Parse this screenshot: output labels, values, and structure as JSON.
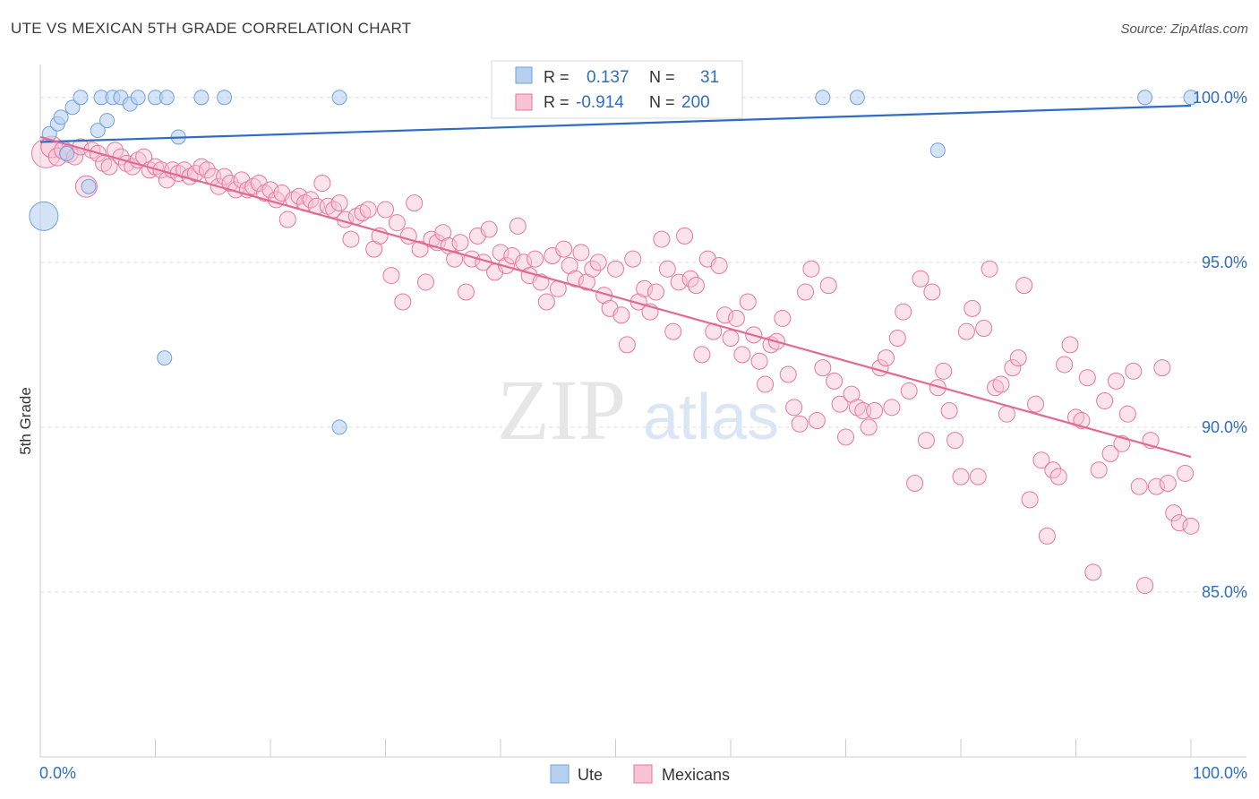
{
  "title": "UTE VS MEXICAN 5TH GRADE CORRELATION CHART",
  "source": "Source: ZipAtlas.com",
  "watermark": {
    "zip": "ZIP",
    "atlas": "atlas"
  },
  "colors": {
    "ute": "#6fa0e0",
    "ute_fill": "#b8d0f0",
    "mexicans": "#e8779c",
    "mexicans_fill": "#f7c2d3",
    "ute_line": "#2f6cc4",
    "mexicans_line": "#e26994",
    "value_blue": "#2f6cc4"
  },
  "legend_top": {
    "rows": [
      {
        "r_label": "R =",
        "r_value": "0.137",
        "n_label": "N =",
        "n_value": "31"
      },
      {
        "r_label": "R =",
        "r_value": "-0.914",
        "n_label": "N =",
        "n_value": "200"
      }
    ]
  },
  "chart_data": {
    "type": "scatter",
    "title": "UTE VS MEXICAN 5TH GRADE CORRELATION CHART",
    "xlabel": "",
    "ylabel": "5th Grade",
    "xlim": [
      0,
      100
    ],
    "ylim": [
      80.0,
      101.0
    ],
    "x_tick_labels": [
      "0.0%",
      "100.0%"
    ],
    "y_ticks": [
      85,
      90,
      95,
      100
    ],
    "y_tick_labels": [
      "85.0%",
      "90.0%",
      "95.0%",
      "100.0%"
    ],
    "grid": true,
    "legend_position": "bottom-center",
    "series": [
      {
        "name": "Ute",
        "trend": {
          "x0": 0,
          "y0": 98.65,
          "x1": 100,
          "y1": 99.75
        },
        "points": [
          [
            0.3,
            96.4,
            16
          ],
          [
            0.8,
            98.9,
            8
          ],
          [
            1.5,
            99.2,
            8
          ],
          [
            1.8,
            99.4,
            8
          ],
          [
            2.3,
            98.3,
            8
          ],
          [
            2.8,
            99.7,
            8
          ],
          [
            3.5,
            100,
            8
          ],
          [
            4.2,
            97.3,
            8
          ],
          [
            5.0,
            99.0,
            8
          ],
          [
            5.3,
            100,
            8
          ],
          [
            5.8,
            99.3,
            8
          ],
          [
            6.3,
            100,
            8
          ],
          [
            7.0,
            100,
            8
          ],
          [
            7.8,
            99.8,
            8
          ],
          [
            8.5,
            100,
            8
          ],
          [
            10.0,
            100,
            8
          ],
          [
            10.8,
            92.1,
            8
          ],
          [
            11.0,
            100,
            8
          ],
          [
            12.0,
            98.8,
            8
          ],
          [
            14.0,
            100,
            8
          ],
          [
            16.0,
            100,
            8
          ],
          [
            26.0,
            90.0,
            8
          ],
          [
            26.0,
            100,
            8
          ],
          [
            44.0,
            100,
            8
          ],
          [
            52.0,
            100,
            8
          ],
          [
            56.0,
            100,
            8
          ],
          [
            68.0,
            100,
            8
          ],
          [
            71.0,
            100,
            8
          ],
          [
            78.0,
            98.4,
            8
          ],
          [
            96.0,
            100,
            8
          ],
          [
            100.0,
            100,
            8
          ]
        ]
      },
      {
        "name": "Mexicans",
        "trend": {
          "x0": 0,
          "y0": 98.8,
          "x1": 100,
          "y1": 89.1
        },
        "points": [
          [
            0.5,
            98.3,
            16
          ],
          [
            1.0,
            98.5,
            12
          ],
          [
            1.5,
            98.2,
            10
          ],
          [
            2.0,
            98.4,
            10
          ],
          [
            2.5,
            98.3,
            10
          ],
          [
            3.0,
            98.2,
            9
          ],
          [
            3.5,
            98.5,
            9
          ],
          [
            4.0,
            97.3,
            12
          ],
          [
            4.5,
            98.4,
            9
          ],
          [
            5.0,
            98.3,
            9
          ],
          [
            5.5,
            98.0,
            9
          ],
          [
            6.0,
            97.9,
            9
          ],
          [
            6.5,
            98.4,
            9
          ],
          [
            7.0,
            98.2,
            9
          ],
          [
            7.5,
            98.0,
            9
          ],
          [
            8.0,
            97.9,
            9
          ],
          [
            8.5,
            98.1,
            9
          ],
          [
            9.0,
            98.2,
            9
          ],
          [
            9.5,
            97.8,
            9
          ],
          [
            10.0,
            97.9,
            9
          ],
          [
            10.5,
            97.8,
            9
          ],
          [
            11.0,
            97.5,
            9
          ],
          [
            11.5,
            97.8,
            9
          ],
          [
            12.0,
            97.7,
            9
          ],
          [
            12.5,
            97.8,
            9
          ],
          [
            13.0,
            97.6,
            9
          ],
          [
            13.5,
            97.7,
            9
          ],
          [
            14.0,
            97.9,
            9
          ],
          [
            14.5,
            97.8,
            9
          ],
          [
            15.0,
            97.6,
            9
          ],
          [
            15.5,
            97.3,
            9
          ],
          [
            16.0,
            97.6,
            9
          ],
          [
            16.5,
            97.4,
            9
          ],
          [
            17.0,
            97.2,
            9
          ],
          [
            17.5,
            97.5,
            9
          ],
          [
            18.0,
            97.2,
            9
          ],
          [
            18.5,
            97.3,
            9
          ],
          [
            19.0,
            97.4,
            9
          ],
          [
            19.5,
            97.1,
            9
          ],
          [
            20.0,
            97.2,
            9
          ],
          [
            20.5,
            96.9,
            9
          ],
          [
            21.0,
            97.1,
            9
          ],
          [
            21.5,
            96.3,
            9
          ],
          [
            22.0,
            96.9,
            9
          ],
          [
            22.5,
            97.0,
            9
          ],
          [
            23.0,
            96.8,
            9
          ],
          [
            23.5,
            96.9,
            9
          ],
          [
            24.0,
            96.7,
            9
          ],
          [
            24.5,
            97.4,
            9
          ],
          [
            25.0,
            96.7,
            9
          ],
          [
            25.5,
            96.6,
            9
          ],
          [
            26.0,
            96.8,
            9
          ],
          [
            26.5,
            96.3,
            9
          ],
          [
            27.0,
            95.7,
            9
          ],
          [
            27.5,
            96.4,
            9
          ],
          [
            28.0,
            96.5,
            9
          ],
          [
            28.5,
            96.6,
            9
          ],
          [
            29.0,
            95.4,
            9
          ],
          [
            29.5,
            95.8,
            9
          ],
          [
            30.0,
            96.6,
            9
          ],
          [
            30.5,
            94.6,
            9
          ],
          [
            31.0,
            96.2,
            9
          ],
          [
            31.5,
            93.8,
            9
          ],
          [
            32.0,
            95.8,
            9
          ],
          [
            32.5,
            96.8,
            9
          ],
          [
            33.0,
            95.4,
            9
          ],
          [
            33.5,
            94.4,
            9
          ],
          [
            34.0,
            95.7,
            9
          ],
          [
            34.5,
            95.6,
            9
          ],
          [
            35.0,
            95.9,
            9
          ],
          [
            35.5,
            95.5,
            9
          ],
          [
            36.0,
            95.1,
            9
          ],
          [
            36.5,
            95.6,
            9
          ],
          [
            37.0,
            94.1,
            9
          ],
          [
            37.5,
            95.1,
            9
          ],
          [
            38.0,
            95.8,
            9
          ],
          [
            38.5,
            95.0,
            9
          ],
          [
            39.0,
            96.0,
            9
          ],
          [
            39.5,
            94.7,
            9
          ],
          [
            40.0,
            95.3,
            9
          ],
          [
            40.5,
            94.9,
            9
          ],
          [
            41.0,
            95.2,
            9
          ],
          [
            41.5,
            96.1,
            9
          ],
          [
            42.0,
            95.0,
            9
          ],
          [
            42.5,
            94.6,
            9
          ],
          [
            43.0,
            95.1,
            9
          ],
          [
            43.5,
            94.4,
            9
          ],
          [
            44.0,
            93.8,
            9
          ],
          [
            44.5,
            95.2,
            9
          ],
          [
            45.0,
            94.2,
            9
          ],
          [
            45.5,
            95.4,
            9
          ],
          [
            46.0,
            94.9,
            9
          ],
          [
            46.5,
            94.5,
            9
          ],
          [
            47.0,
            95.3,
            9
          ],
          [
            47.5,
            94.4,
            9
          ],
          [
            48.0,
            94.8,
            9
          ],
          [
            48.5,
            95.0,
            9
          ],
          [
            49.0,
            94.0,
            9
          ],
          [
            49.5,
            93.6,
            9
          ],
          [
            50.0,
            94.8,
            9
          ],
          [
            50.5,
            93.4,
            9
          ],
          [
            51.0,
            92.5,
            9
          ],
          [
            51.5,
            95.1,
            9
          ],
          [
            52.0,
            93.8,
            9
          ],
          [
            52.5,
            94.2,
            9
          ],
          [
            53.0,
            93.5,
            9
          ],
          [
            53.5,
            94.1,
            9
          ],
          [
            54.0,
            95.7,
            9
          ],
          [
            54.5,
            94.8,
            9
          ],
          [
            55.0,
            92.9,
            9
          ],
          [
            55.5,
            94.4,
            9
          ],
          [
            56.0,
            95.8,
            9
          ],
          [
            56.5,
            94.5,
            9
          ],
          [
            57.0,
            94.3,
            9
          ],
          [
            57.5,
            92.2,
            9
          ],
          [
            58.0,
            95.1,
            9
          ],
          [
            58.5,
            92.9,
            9
          ],
          [
            59.0,
            94.9,
            9
          ],
          [
            59.5,
            93.4,
            9
          ],
          [
            60.0,
            92.7,
            9
          ],
          [
            60.5,
            93.3,
            9
          ],
          [
            61.0,
            92.2,
            9
          ],
          [
            61.5,
            93.8,
            9
          ],
          [
            62.0,
            92.8,
            9
          ],
          [
            62.5,
            92.0,
            9
          ],
          [
            63.0,
            91.3,
            9
          ],
          [
            63.5,
            92.5,
            9
          ],
          [
            64.0,
            92.6,
            9
          ],
          [
            64.5,
            93.3,
            9
          ],
          [
            65.0,
            91.6,
            9
          ],
          [
            65.5,
            90.6,
            9
          ],
          [
            66.0,
            90.1,
            9
          ],
          [
            66.5,
            94.1,
            9
          ],
          [
            67.0,
            94.8,
            9
          ],
          [
            67.5,
            90.2,
            9
          ],
          [
            68.0,
            91.8,
            9
          ],
          [
            68.5,
            94.3,
            9
          ],
          [
            69.0,
            91.4,
            9
          ],
          [
            69.5,
            90.7,
            9
          ],
          [
            70.0,
            89.7,
            9
          ],
          [
            70.5,
            91.0,
            9
          ],
          [
            71.0,
            90.6,
            9
          ],
          [
            71.5,
            90.5,
            9
          ],
          [
            72.0,
            90.0,
            9
          ],
          [
            72.5,
            90.5,
            9
          ],
          [
            73.0,
            91.8,
            9
          ],
          [
            73.5,
            92.1,
            9
          ],
          [
            74.0,
            90.6,
            9
          ],
          [
            74.5,
            92.7,
            9
          ],
          [
            75.0,
            93.5,
            9
          ],
          [
            75.5,
            91.1,
            9
          ],
          [
            76.0,
            88.3,
            9
          ],
          [
            76.5,
            94.5,
            9
          ],
          [
            77.0,
            89.6,
            9
          ],
          [
            77.5,
            94.1,
            9
          ],
          [
            78.0,
            91.2,
            9
          ],
          [
            78.5,
            91.7,
            9
          ],
          [
            79.0,
            90.5,
            9
          ],
          [
            79.5,
            89.6,
            9
          ],
          [
            80.0,
            88.5,
            9
          ],
          [
            80.5,
            92.9,
            9
          ],
          [
            81.0,
            93.6,
            9
          ],
          [
            81.5,
            88.5,
            9
          ],
          [
            82.0,
            93.0,
            9
          ],
          [
            82.5,
            94.8,
            9
          ],
          [
            83.0,
            91.2,
            9
          ],
          [
            83.5,
            91.3,
            9
          ],
          [
            84.0,
            90.4,
            9
          ],
          [
            84.5,
            91.8,
            9
          ],
          [
            85.0,
            92.1,
            9
          ],
          [
            85.5,
            94.3,
            9
          ],
          [
            86.0,
            87.8,
            9
          ],
          [
            86.5,
            90.7,
            9
          ],
          [
            87.0,
            89.0,
            9
          ],
          [
            87.5,
            86.7,
            9
          ],
          [
            88.0,
            88.7,
            9
          ],
          [
            88.5,
            88.5,
            9
          ],
          [
            89.0,
            91.9,
            9
          ],
          [
            89.5,
            92.5,
            9
          ],
          [
            90.0,
            90.3,
            9
          ],
          [
            90.5,
            90.2,
            9
          ],
          [
            91.0,
            91.5,
            9
          ],
          [
            91.5,
            85.6,
            9
          ],
          [
            92.0,
            88.7,
            9
          ],
          [
            92.5,
            90.8,
            9
          ],
          [
            93.0,
            89.2,
            9
          ],
          [
            93.5,
            91.4,
            9
          ],
          [
            94.0,
            89.5,
            9
          ],
          [
            94.5,
            90.4,
            9
          ],
          [
            95.0,
            91.7,
            9
          ],
          [
            95.5,
            88.2,
            9
          ],
          [
            96.0,
            85.2,
            9
          ],
          [
            96.5,
            89.6,
            9
          ],
          [
            97.0,
            88.2,
            9
          ],
          [
            97.5,
            91.8,
            9
          ],
          [
            98.0,
            88.3,
            9
          ],
          [
            98.5,
            87.4,
            9
          ],
          [
            99.0,
            87.1,
            9
          ],
          [
            99.5,
            88.6,
            9
          ],
          [
            100.0,
            87.0,
            9
          ]
        ]
      }
    ]
  },
  "legend_bottom": [
    {
      "label": "Ute"
    },
    {
      "label": "Mexicans"
    }
  ]
}
